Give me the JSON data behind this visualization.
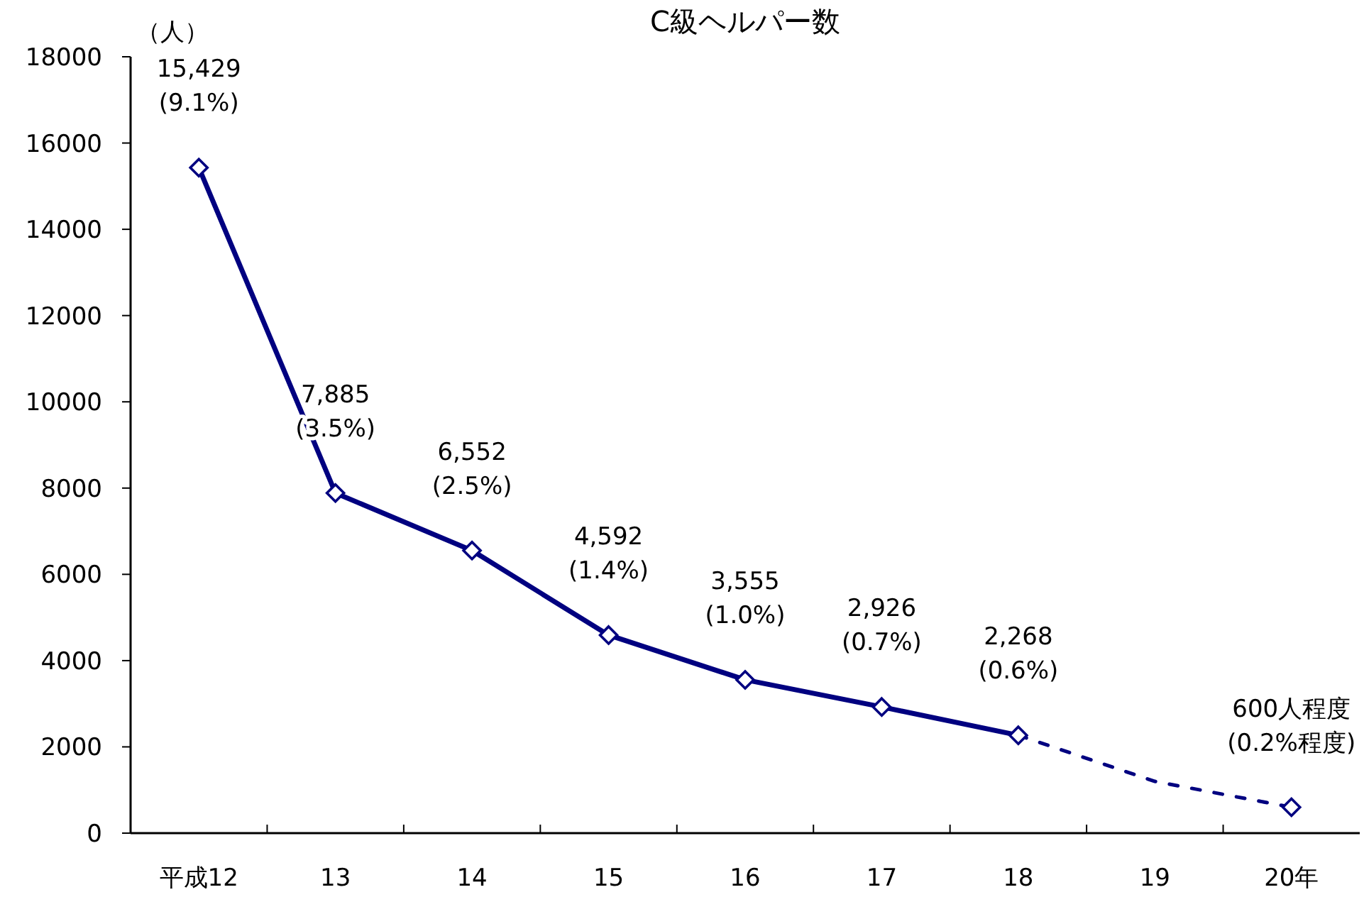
{
  "chart_data": {
    "type": "line",
    "title": "C級ヘルパー数",
    "ylabel": "（人）",
    "categories": [
      "平成12",
      "13",
      "14",
      "15",
      "16",
      "17",
      "18",
      "19",
      "20年"
    ],
    "ylim": [
      0,
      18000
    ],
    "yticks": [
      0,
      2000,
      4000,
      6000,
      8000,
      10000,
      12000,
      14000,
      16000,
      18000
    ],
    "grid": false,
    "series": [
      {
        "color": "#000080",
        "marker": "diamond",
        "line_style": "solid",
        "values": [
          15429,
          7885,
          6552,
          4592,
          3555,
          2926,
          2268,
          null,
          null
        ],
        "value_labels": [
          "15,429\n(9.1%)",
          "7,885\n(3.5%)",
          "6,552\n(2.5%)",
          "4,592\n(1.4%)",
          "3,555\n(1.0%)",
          "2,926\n(0.7%)",
          "2,268\n(0.6%)",
          null,
          null
        ]
      },
      {
        "color": "#000080",
        "marker": "none",
        "line_style": "dashed",
        "values": [
          null,
          null,
          null,
          null,
          null,
          null,
          2268,
          1200,
          600
        ]
      },
      {
        "type": "scatter",
        "color": "#000080",
        "marker": "diamond",
        "values": [
          null,
          null,
          null,
          null,
          null,
          null,
          null,
          null,
          600
        ],
        "value_labels": [
          null,
          null,
          null,
          null,
          null,
          null,
          null,
          null,
          "600人程度\n(0.2%程度)"
        ]
      }
    ]
  }
}
